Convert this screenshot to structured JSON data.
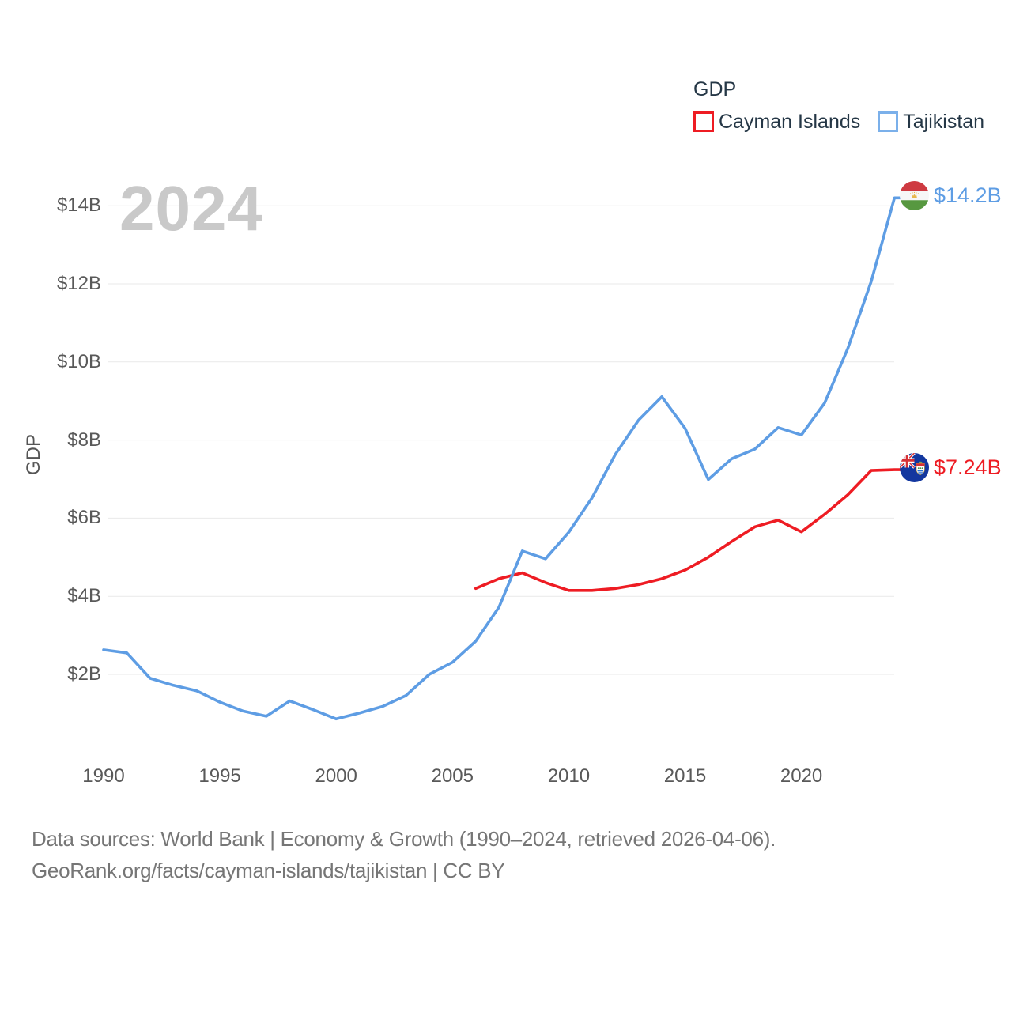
{
  "watermark": "2024",
  "legend": {
    "title": "GDP",
    "series": [
      {
        "label": "Cayman Islands",
        "color": "#ee1c23"
      },
      {
        "label": "Tajikistan",
        "color": "#7bb0ea"
      }
    ]
  },
  "y_axis": {
    "label": "GDP",
    "ticks": [
      "$2B",
      "$4B",
      "$6B",
      "$8B",
      "$10B",
      "$12B",
      "$14B"
    ]
  },
  "x_axis": {
    "ticks": [
      "1990",
      "1995",
      "2000",
      "2005",
      "2010",
      "2015",
      "2020"
    ]
  },
  "end_labels": [
    {
      "series": "Tajikistan",
      "value": "$14.2B",
      "color": "#5e9de4",
      "flag": "tajikistan-flag"
    },
    {
      "series": "Cayman Islands",
      "value": "$7.24B",
      "color": "#ee1c23",
      "flag": "cayman-islands-flag"
    }
  ],
  "footer": {
    "line1": "Data sources: World Bank | Economy & Growth (1990–2024, retrieved 2026-04-06).",
    "line2": "GeoRank.org/facts/cayman-islands/tajikistan | CC BY"
  },
  "chart_data": {
    "type": "line",
    "title": "GDP",
    "xlabel": "",
    "ylabel": "GDP",
    "xlim": [
      1990,
      2024.5
    ],
    "ylim": [
      0,
      15
    ],
    "grid": "horizontal-only",
    "legend_position": "top-right",
    "x_tick_values": [
      1990,
      1995,
      2000,
      2005,
      2010,
      2015,
      2020
    ],
    "y_tick_values": [
      2,
      4,
      6,
      8,
      10,
      12,
      14
    ],
    "series": [
      {
        "name": "Cayman Islands",
        "color": "#ee1c23",
        "start_year": 2006,
        "end_label": "$7.24B",
        "values": [
          4.2,
          4.45,
          4.6,
          4.35,
          4.15,
          4.15,
          4.2,
          4.3,
          4.45,
          4.67,
          5.0,
          5.4,
          5.78,
          5.95,
          5.65,
          6.1,
          6.6,
          7.22,
          7.24
        ]
      },
      {
        "name": "Tajikistan",
        "color": "#5e9de4",
        "start_year": 1990,
        "end_label": "$14.2B",
        "values": [
          2.63,
          2.55,
          1.9,
          1.72,
          1.58,
          1.29,
          1.06,
          0.93,
          1.32,
          1.1,
          0.86,
          1.01,
          1.18,
          1.46,
          2.0,
          2.31,
          2.85,
          3.72,
          5.16,
          4.96,
          5.64,
          6.52,
          7.63,
          8.51,
          9.11,
          8.3,
          6.99,
          7.52,
          7.77,
          8.32,
          8.13,
          8.95,
          10.35,
          12.06,
          14.2
        ]
      }
    ]
  }
}
